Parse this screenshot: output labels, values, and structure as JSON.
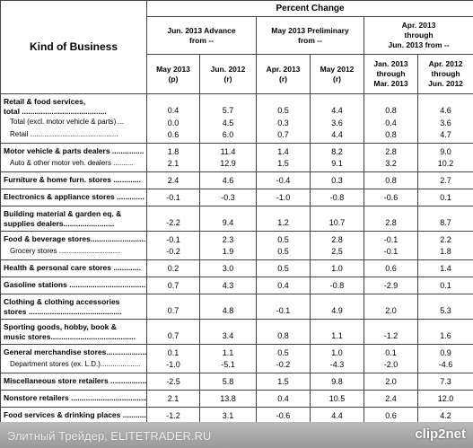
{
  "header": {
    "kind_of_business": "Kind of Business",
    "percent_change": "Percent Change",
    "groups": [
      [
        "Jun. 2013 Advance",
        "from --"
      ],
      [
        "May 2013 Preliminary",
        "from --"
      ],
      [
        "Apr. 2013",
        "through",
        "Jun. 2013 from --"
      ]
    ],
    "columns": [
      [
        "May 2013",
        "(p)"
      ],
      [
        "Jun. 2012",
        "(r)"
      ],
      [
        "Apr. 2013",
        "(r)"
      ],
      [
        "May 2012",
        "(r)"
      ],
      [
        "Jan. 2013",
        "through",
        "Mar. 2013"
      ],
      [
        "Apr. 2012",
        "through",
        "Jun. 2012"
      ]
    ]
  },
  "table": {
    "groups": [
      [
        {
          "label": [
            "Retail & food services,",
            "  total ........................................"
          ],
          "bold": true,
          "values": [
            "0.4",
            "5.7",
            "0.5",
            "4.4",
            "0.8",
            "4.6"
          ]
        },
        {
          "label": [
            "Total (excl. motor vehicle & parts) ..."
          ],
          "indent": true,
          "values": [
            "0.0",
            "4.5",
            "0.3",
            "3.6",
            "0.4",
            "3.6"
          ]
        },
        {
          "label": [
            "Retail ............................................"
          ],
          "indent": true,
          "values": [
            "0.6",
            "6.0",
            "0.7",
            "4.4",
            "0.8",
            "4.7"
          ]
        }
      ],
      [
        {
          "label": [
            "Motor vehicle & parts dealers ..............."
          ],
          "bold": true,
          "values": [
            "1.8",
            "11.4",
            "1.4",
            "8.2",
            "2.8",
            "9.0"
          ]
        },
        {
          "label": [
            "Auto & other motor veh. dealers .........."
          ],
          "indent": true,
          "values": [
            "2.1",
            "12.9",
            "1.5",
            "9.1",
            "3.2",
            "10.2"
          ]
        }
      ],
      [
        {
          "label": [
            "Furniture & home furn. stores ............."
          ],
          "bold": true,
          "values": [
            "2.4",
            "4.6",
            "-0.4",
            "0.3",
            "0.8",
            "2.7"
          ]
        }
      ],
      [
        {
          "label": [
            "Electronics & appliance stores ............."
          ],
          "bold": true,
          "values": [
            "-0.1",
            "-0.3",
            "-1.0",
            "-0.8",
            "-0.6",
            "0.1"
          ]
        }
      ],
      [
        {
          "label": [
            "Building material & garden eq. &",
            "supplies dealers........................"
          ],
          "bold": true,
          "values": [
            "-2.2",
            "9.4",
            "1.2",
            "10.7",
            "2.8",
            "8.7"
          ]
        }
      ],
      [
        {
          "label": [
            "Food & beverage stores.........................."
          ],
          "bold": true,
          "values": [
            "-0.1",
            "2.3",
            "0.5",
            "2.8",
            "-0.1",
            "2.2"
          ]
        },
        {
          "label": [
            "Grocery stores ..............................."
          ],
          "indent": true,
          "values": [
            "-0.2",
            "1.9",
            "0.5",
            "2.5",
            "-0.1",
            "1.8"
          ]
        }
      ],
      [
        {
          "label": [
            "Health & personal care stores ............."
          ],
          "bold": true,
          "values": [
            "0.2",
            "3.0",
            "0.5",
            "1.0",
            "0.6",
            "1.4"
          ]
        }
      ],
      [
        {
          "label": [
            "Gasoline stations ...................................."
          ],
          "bold": true,
          "values": [
            "0.7",
            "4.3",
            "0.4",
            "-0.8",
            "-2.9",
            "0.1"
          ]
        }
      ],
      [
        {
          "label": [
            "Clothing & clothing accessories",
            "stores ............................................"
          ],
          "bold": true,
          "values": [
            "0.7",
            "4.8",
            "-0.1",
            "4.9",
            "2.0",
            "5.3"
          ]
        }
      ],
      [
        {
          "label": [
            "Sporting goods, hobby, book &",
            "music stores........................................"
          ],
          "bold": true,
          "values": [
            "0.7",
            "3.4",
            "0.8",
            "1.1",
            "-1.2",
            "1.6"
          ]
        }
      ],
      [
        {
          "label": [
            "General merchandise stores......................"
          ],
          "bold": true,
          "values": [
            "0.1",
            "1.1",
            "0.5",
            "1.0",
            "0.1",
            "0.9"
          ]
        },
        {
          "label": [
            "Department stores (ex. L.D.)...................."
          ],
          "indent": true,
          "values": [
            "-1.0",
            "-5.1",
            "-0.2",
            "-4.3",
            "-2.0",
            "-4.6"
          ]
        }
      ],
      [
        {
          "label": [
            "Miscellaneous store retailers ..................."
          ],
          "bold": true,
          "values": [
            "-2.5",
            "5.8",
            "1.5",
            "9.8",
            "2.0",
            "7.3"
          ]
        }
      ],
      [
        {
          "label": [
            "Nonstore retailers ........................................"
          ],
          "bold": true,
          "values": [
            "2.1",
            "13.8",
            "0.4",
            "10.5",
            "2.4",
            "12.0"
          ]
        }
      ],
      [
        {
          "label": [
            "Food services & drinking places ............."
          ],
          "bold": true,
          "values": [
            "-1.2",
            "3.1",
            "-0.6",
            "4.4",
            "0.6",
            "4.2"
          ]
        }
      ]
    ]
  },
  "footer": {
    "watermark": "Элитный Трейдер, ELITETRADER.RU",
    "logo": "clip2net"
  }
}
